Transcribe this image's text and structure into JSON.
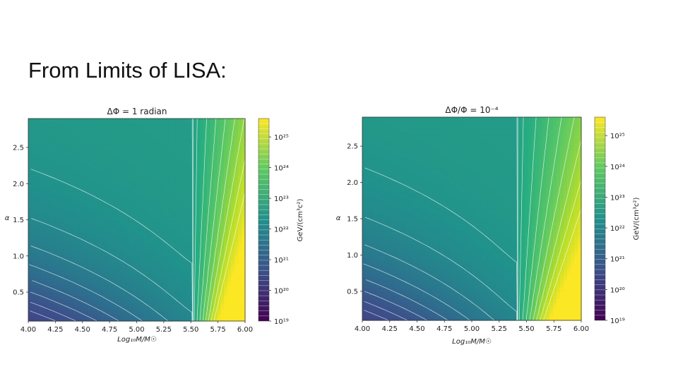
{
  "slide": {
    "title": "From Limits of LISA:"
  },
  "colorbar": {
    "label": "GeV/(cm³c²)",
    "ticks": [
      "10¹⁹",
      "10²⁰",
      "10²¹",
      "10²²",
      "10²³",
      "10²⁴",
      "10²⁵"
    ],
    "colormap": [
      "#440154",
      "#3b528b",
      "#21918c",
      "#5ec962",
      "#fde725"
    ]
  },
  "chart_data": [
    {
      "type": "heatmap",
      "title": "ΔΦ = 1 radian",
      "xlabel": "Log₁₀M/M☉",
      "ylabel": "α",
      "xlim": [
        4.0,
        6.0
      ],
      "ylim": [
        0.1,
        2.9
      ],
      "xticks": [
        "4.00",
        "4.25",
        "4.50",
        "4.75",
        "5.00",
        "5.25",
        "5.50",
        "5.75",
        "6.00"
      ],
      "yticks": [
        "0.5",
        "1.0",
        "1.5",
        "2.0",
        "2.5"
      ],
      "z_log_range": [
        19,
        25.6
      ],
      "color_palette": [
        "#3b0f70",
        "#414487",
        "#3b528b",
        "#2c728e",
        "#21918c",
        "#28ae80",
        "#5ec962",
        "#b5de2b",
        "#fde725"
      ]
    },
    {
      "type": "heatmap",
      "title": "ΔΦ/Φ = 10⁻⁴",
      "xlabel": "Log₁₀M/M☉",
      "ylabel": "α",
      "xlim": [
        4.0,
        6.0
      ],
      "ylim": [
        0.1,
        2.9
      ],
      "xticks": [
        "4.00",
        "4.25",
        "4.50",
        "4.75",
        "5.00",
        "5.25",
        "5.50",
        "5.75",
        "6.00"
      ],
      "yticks": [
        "0.5",
        "1.0",
        "1.5",
        "2.0",
        "2.5"
      ],
      "z_log_range": [
        19,
        25.6
      ],
      "color_palette": [
        "#3b0f70",
        "#414487",
        "#3b528b",
        "#2c728e",
        "#21918c",
        "#28ae80",
        "#5ec962",
        "#b5de2b",
        "#fde725"
      ]
    }
  ]
}
